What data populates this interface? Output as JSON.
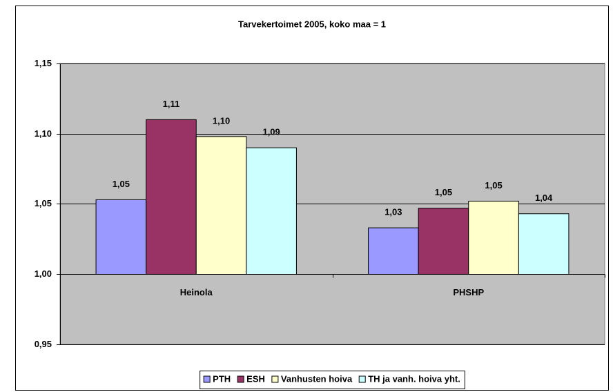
{
  "chart_data": {
    "type": "bar",
    "title": "Tarvekertoimet 2005, koko maa = 1",
    "categories": [
      "Heinola",
      "PHSHP"
    ],
    "series": [
      {
        "name": "PTH",
        "color": "#9999ff",
        "values": [
          1.053,
          1.033
        ],
        "value_labels": [
          "1,05",
          "1,03"
        ]
      },
      {
        "name": "ESH",
        "color": "#993366",
        "values": [
          1.11,
          1.047
        ],
        "value_labels": [
          "1,11",
          "1,05"
        ]
      },
      {
        "name": "Vanhusten hoiva",
        "color": "#ffffcc",
        "values": [
          1.098,
          1.052
        ],
        "value_labels": [
          "1,10",
          "1,05"
        ]
      },
      {
        "name": "TH ja vanh. hoiva yht.",
        "color": "#ccffff",
        "values": [
          1.09,
          1.043
        ],
        "value_labels": [
          "1,09",
          "1,04"
        ]
      }
    ],
    "ylim": [
      0.95,
      1.15
    ],
    "yticks": [
      {
        "value": 0.95,
        "label": "0,95"
      },
      {
        "value": 1.0,
        "label": "1,00"
      },
      {
        "value": 1.05,
        "label": "1,05"
      },
      {
        "value": 1.1,
        "label": "1,10"
      },
      {
        "value": 1.15,
        "label": "1,15"
      }
    ],
    "x_axis_crosses": 1.0,
    "grid": true,
    "legend": "bottom",
    "plot_background": "#c0c0c0"
  }
}
